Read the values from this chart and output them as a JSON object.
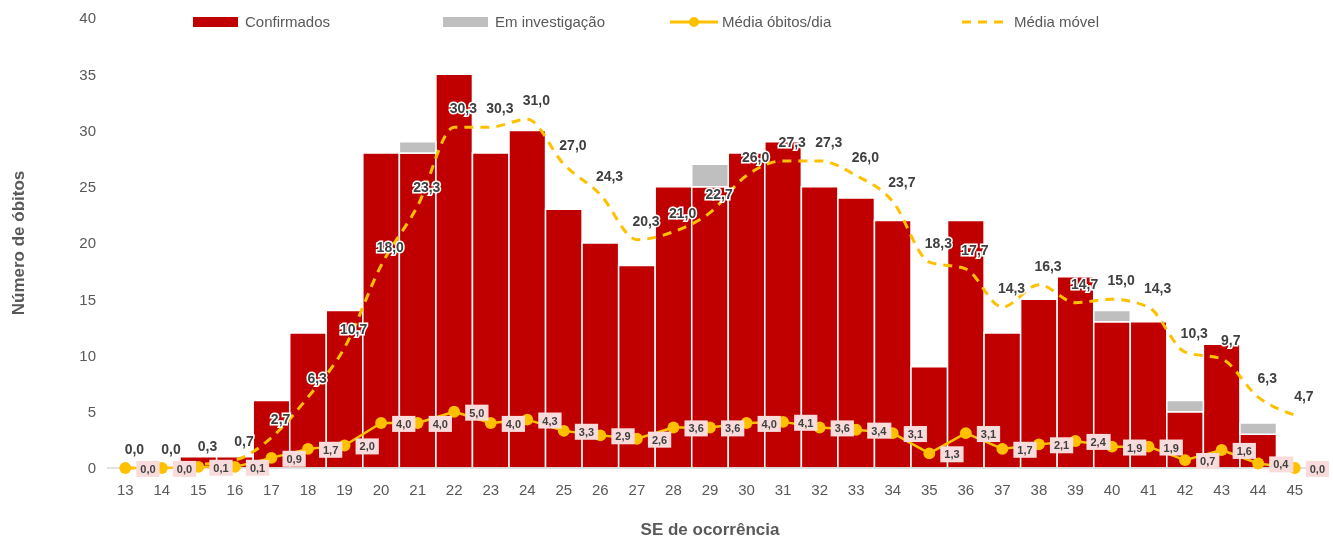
{
  "chart_data": {
    "type": "bar",
    "stacked": true,
    "xlabel": "SE de ocorrência",
    "ylabel": "Número de óbitos",
    "categories": [
      "13",
      "14",
      "15",
      "16",
      "17",
      "18",
      "19",
      "20",
      "21",
      "22",
      "23",
      "24",
      "25",
      "26",
      "27",
      "28",
      "29",
      "30",
      "31",
      "32",
      "33",
      "34",
      "35",
      "36",
      "37",
      "38",
      "39",
      "40",
      "41",
      "42",
      "43",
      "44",
      "45"
    ],
    "ylim": [
      0,
      40
    ],
    "yticks": [
      0,
      5,
      10,
      15,
      20,
      25,
      30,
      35,
      40
    ],
    "grid": false,
    "legend": "top",
    "series": [
      {
        "name": "Confirmados",
        "color": "#c00000",
        "values": [
          0,
          0,
          1,
          1,
          6,
          12,
          14,
          28,
          28,
          35,
          28,
          30,
          23,
          20,
          18,
          25,
          25,
          28,
          29,
          25,
          24,
          22,
          9,
          22,
          12,
          15,
          17,
          13,
          13,
          5,
          11,
          3,
          0
        ]
      },
      {
        "name": "Em investigação",
        "color": "#bfbfbf",
        "values": [
          0,
          0,
          0,
          0,
          0,
          0,
          0,
          0,
          1,
          0,
          0,
          0,
          0,
          0,
          0,
          0,
          2,
          0,
          0,
          0,
          0,
          0,
          0,
          0,
          0,
          0,
          0,
          1,
          0,
          1,
          0,
          1,
          0
        ]
      },
      {
        "name": "Média óbitos/dia",
        "type": "line",
        "color": "#ffc000",
        "marker": "circle",
        "line_style": "solid",
        "values": [
          0,
          0,
          0.1,
          0.1,
          0.9,
          1.7,
          2.0,
          4.0,
          4.0,
          5.0,
          4.0,
          4.3,
          3.3,
          2.9,
          2.6,
          3.6,
          3.6,
          4.0,
          4.1,
          3.6,
          3.4,
          3.1,
          1.3,
          3.1,
          1.7,
          2.1,
          2.4,
          1.9,
          1.9,
          0.7,
          1.6,
          0.4,
          0
        ],
        "value_labels": [
          "0,0",
          "0,0",
          "0,1",
          "0,1",
          "0,9",
          "1,7",
          "2,0",
          "4,0",
          "4,0",
          "5,0",
          "4,0",
          "4,3",
          "3,3",
          "2,9",
          "2,6",
          "3,6",
          "3,6",
          "4,0",
          "4,1",
          "3,6",
          "3,4",
          "3,1",
          "1,3",
          "3,1",
          "1,7",
          "2,1",
          "2,4",
          "1,9",
          "1,9",
          "0,7",
          "1,6",
          "0,4",
          "0,0"
        ]
      },
      {
        "name": "Média móvel",
        "type": "line",
        "color": "#ffc000",
        "marker": "none",
        "line_style": "dashed",
        "values": [
          0,
          0,
          0.3,
          0.7,
          2.7,
          6.3,
          10.7,
          18.0,
          23.3,
          30.3,
          30.3,
          31.0,
          27.0,
          24.3,
          20.3,
          21.0,
          22.7,
          26.0,
          27.3,
          27.3,
          26.0,
          23.7,
          18.3,
          17.7,
          14.3,
          16.3,
          14.7,
          15.0,
          14.3,
          10.3,
          9.7,
          6.3,
          4.7
        ],
        "value_labels": [
          "0,0",
          "0,0",
          "0,3",
          "0,7",
          "2,7",
          "6,3",
          "10,7",
          "18,0",
          "23,3",
          "30,3",
          "30,3",
          "31,0",
          "27,0",
          "24,3",
          "20,3",
          "21,0",
          "22,7",
          "26,0",
          "27,3",
          "27,3",
          "26,0",
          "23,7",
          "18,3",
          "17,7",
          "14,3",
          "16,3",
          "14,7",
          "15,0",
          "14,3",
          "10,3",
          "9,7",
          "6,3",
          "4,7"
        ]
      }
    ]
  }
}
